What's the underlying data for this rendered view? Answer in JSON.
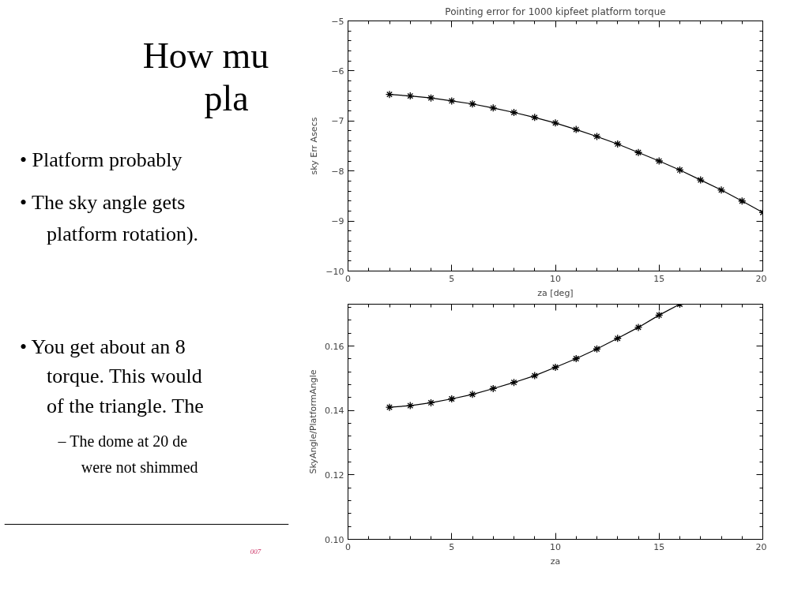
{
  "chart_data": [
    {
      "type": "other",
      "annotations": [
        "How mu",
        "pla",
        "• Platform probably",
        "• The sky angle gets",
        "platform rotation).",
        "• You get about an 8",
        "torque. This would",
        "of the triangle. The",
        "– The dome at 20 de",
        "were not shimmed",
        "007"
      ]
    },
    {
      "type": "line",
      "title": "Pointing error for 1000 kipfeet platform torque",
      "xlabel": "za [deg]",
      "ylabel": "sky Err Asecs",
      "marker": "cross",
      "x": [
        2,
        3,
        4,
        5,
        6,
        7,
        8,
        9,
        10,
        11,
        12,
        13,
        14,
        15,
        16,
        17,
        18,
        19,
        20
      ],
      "series": [
        {
          "color": "#000000",
          "values": [
            -6.47,
            -6.5,
            -6.54,
            -6.6,
            -6.66,
            -6.74,
            -6.83,
            -6.93,
            -7.04,
            -7.17,
            -7.31,
            -7.46,
            -7.63,
            -7.8,
            -7.98,
            -8.18,
            -8.38,
            -8.6,
            -8.83
          ]
        }
      ],
      "xlim": [
        0,
        20
      ],
      "xticks": [
        0,
        5,
        10,
        15,
        20
      ],
      "ylim": [
        -10,
        -5
      ],
      "yticks": [
        -10,
        -9,
        -8,
        -7,
        -6,
        -5
      ]
    },
    {
      "type": "line",
      "xlabel": "za",
      "ylabel": "SkyAngle/PlatformAngle",
      "marker": "cross",
      "x": [
        2,
        3,
        4,
        5,
        6,
        7,
        8,
        9,
        10,
        11,
        12,
        13,
        14,
        15,
        16
      ],
      "series": [
        {
          "color": "#000000",
          "values": [
            0.141,
            0.1415,
            0.1424,
            0.1436,
            0.145,
            0.1468,
            0.1487,
            0.1508,
            0.1534,
            0.1561,
            0.1591,
            0.1624,
            0.1658,
            0.1696,
            0.173
          ]
        }
      ],
      "xlim": [
        0,
        20
      ],
      "xticks": [
        0,
        5,
        10,
        15,
        20
      ],
      "ylim": [
        0.1,
        0.173
      ],
      "yticks": [
        {
          "value": 0.1,
          "label": "0.10"
        },
        {
          "value": 0.12,
          "label": "0.12"
        },
        {
          "value": 0.14,
          "label": "0.14"
        },
        {
          "value": 0.16,
          "label": "0.16"
        }
      ]
    }
  ]
}
